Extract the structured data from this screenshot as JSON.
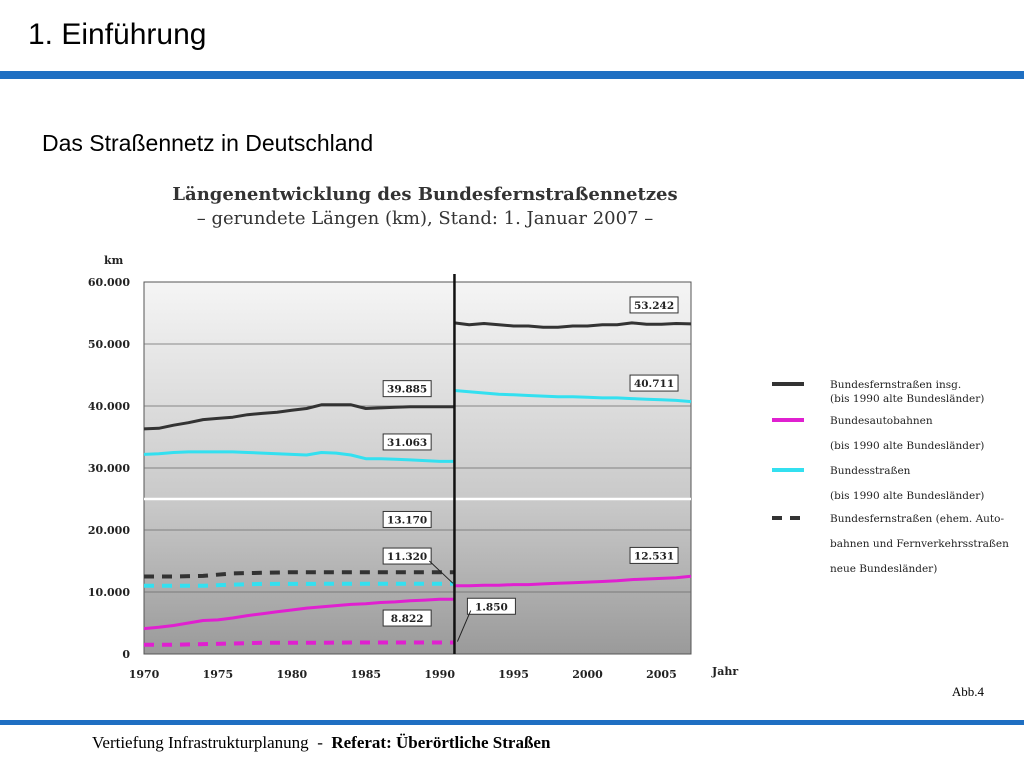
{
  "slide": {
    "title": "1. Einführung",
    "subtitle": "Das Straßennetz in Deutschland",
    "figure_label": "Abb.4",
    "accent_color": "#1f6fc2",
    "footer": {
      "course": "Vertiefung Infrastrukturplanung",
      "separator": "  -  ",
      "topic": "Referat: Überörtliche Straßen"
    }
  },
  "chart_data": {
    "type": "line",
    "title": "Längenentwicklung des Bundesfernstraßennetzes",
    "subtitle": "– gerundete Längen (km), Stand: 1. Januar 2007 –",
    "ylabel": "km",
    "xlabel": "Jahr",
    "ylim": [
      0,
      60000
    ],
    "xlim": [
      1970,
      2007
    ],
    "yticks": [
      "0",
      "10.000",
      "20.000",
      "30.000",
      "40.000",
      "50.000",
      "60.000"
    ],
    "ytick_values": [
      0,
      10000,
      20000,
      30000,
      40000,
      50000,
      60000
    ],
    "xticks": [
      "1970",
      "1975",
      "1980",
      "1985",
      "1990",
      "1995",
      "2000",
      "2005"
    ],
    "xtick_values": [
      1970,
      1975,
      1980,
      1985,
      1990,
      1995,
      2000,
      2005
    ],
    "break_year": 1991,
    "grid": true,
    "legend_position": "right",
    "series": [
      {
        "name": "Bundesfernstraßen insg. (bis 1990 alte Bundesländer)",
        "color": "#333333",
        "dash": false,
        "x": [
          1970,
          1971,
          1972,
          1973,
          1974,
          1975,
          1976,
          1977,
          1978,
          1979,
          1980,
          1981,
          1982,
          1983,
          1984,
          1985,
          1986,
          1987,
          1988,
          1989,
          1990,
          1991
        ],
        "y": [
          36300,
          36400,
          36900,
          37300,
          37800,
          38000,
          38200,
          38600,
          38800,
          39000,
          39300,
          39600,
          40200,
          40200,
          40200,
          39600,
          39700,
          39800,
          39885,
          39885,
          39885,
          39885
        ]
      },
      {
        "name": "Bundesfernstraßen insg. (ab 1991)",
        "color": "#333333",
        "dash": false,
        "x": [
          1991,
          1992,
          1993,
          1994,
          1995,
          1996,
          1997,
          1998,
          1999,
          2000,
          2001,
          2002,
          2003,
          2004,
          2005,
          2006,
          2007
        ],
        "y": [
          53400,
          53100,
          53300,
          53100,
          52900,
          52900,
          52700,
          52700,
          52900,
          52900,
          53100,
          53100,
          53400,
          53200,
          53200,
          53300,
          53242
        ]
      },
      {
        "name": "Bundesautobahnen (bis 1990 alte Bundesländer)",
        "color": "#e020d0",
        "dash": false,
        "x": [
          1970,
          1971,
          1972,
          1973,
          1974,
          1975,
          1976,
          1977,
          1978,
          1979,
          1980,
          1981,
          1982,
          1983,
          1984,
          1985,
          1986,
          1987,
          1988,
          1989,
          1990,
          1991
        ],
        "y": [
          4100,
          4300,
          4600,
          5000,
          5400,
          5500,
          5800,
          6200,
          6500,
          6800,
          7100,
          7400,
          7600,
          7800,
          8000,
          8100,
          8300,
          8400,
          8600,
          8700,
          8822,
          8822
        ]
      },
      {
        "name": "Bundesautobahnen (ab 1991)",
        "color": "#e020d0",
        "dash": false,
        "x": [
          1991,
          1992,
          1993,
          1994,
          1995,
          1996,
          1997,
          1998,
          1999,
          2000,
          2001,
          2002,
          2003,
          2004,
          2005,
          2006,
          2007
        ],
        "y": [
          11000,
          11000,
          11100,
          11100,
          11200,
          11200,
          11300,
          11400,
          11500,
          11600,
          11700,
          11800,
          12000,
          12100,
          12200,
          12300,
          12531
        ]
      },
      {
        "name": "Bundesstraßen (bis 1990 alte Bundesländer)",
        "color": "#33e0f0",
        "dash": false,
        "x": [
          1970,
          1971,
          1972,
          1973,
          1974,
          1975,
          1976,
          1977,
          1978,
          1979,
          1980,
          1981,
          1982,
          1983,
          1984,
          1985,
          1986,
          1987,
          1988,
          1989,
          1990,
          1991
        ],
        "y": [
          32200,
          32300,
          32500,
          32600,
          32600,
          32600,
          32600,
          32500,
          32400,
          32300,
          32200,
          32100,
          32500,
          32400,
          32100,
          31500,
          31500,
          31400,
          31300,
          31200,
          31063,
          31063
        ]
      },
      {
        "name": "Bundesstraßen (ab 1991)",
        "color": "#33e0f0",
        "dash": false,
        "x": [
          1991,
          1992,
          1993,
          1994,
          1995,
          1996,
          1997,
          1998,
          1999,
          2000,
          2001,
          2002,
          2003,
          2004,
          2005,
          2006,
          2007
        ],
        "y": [
          42500,
          42300,
          42100,
          41900,
          41800,
          41700,
          41600,
          41500,
          41500,
          41400,
          41300,
          41300,
          41200,
          41100,
          41000,
          40900,
          40711
        ]
      },
      {
        "name": "Bundesfernstraßen (ehem. Autobahnen und Fernverkehrsstraßen neue Bundesländer)",
        "color": "#333333",
        "dash": true,
        "x": [
          1970,
          1972,
          1974,
          1976,
          1978,
          1980,
          1982,
          1984,
          1986,
          1988,
          1991
        ],
        "y": [
          12500,
          12500,
          12600,
          13000,
          13100,
          13200,
          13200,
          13170,
          13170,
          13170,
          13170
        ]
      },
      {
        "name": "Bundesstraßen (neue Bundesländer)",
        "color": "#33e0f0",
        "dash": true,
        "x": [
          1970,
          1972,
          1974,
          1976,
          1978,
          1980,
          1982,
          1984,
          1986,
          1988,
          1991
        ],
        "y": [
          11000,
          11000,
          11000,
          11200,
          11300,
          11300,
          11320,
          11320,
          11320,
          11320,
          11320
        ]
      },
      {
        "name": "Bundesautobahnen (neue Bundesländer)",
        "color": "#e020d0",
        "dash": true,
        "x": [
          1970,
          1972,
          1974,
          1976,
          1978,
          1980,
          1982,
          1984,
          1986,
          1988,
          1991
        ],
        "y": [
          1500,
          1500,
          1600,
          1700,
          1800,
          1800,
          1800,
          1850,
          1850,
          1850,
          1850
        ]
      }
    ],
    "annotations": [
      {
        "text": "53.242",
        "x": 2004.5,
        "y": 56300
      },
      {
        "text": "39.885",
        "x": 1987.8,
        "y": 42800
      },
      {
        "text": "40.711",
        "x": 2004.5,
        "y": 43700
      },
      {
        "text": "31.063",
        "x": 1987.8,
        "y": 34200
      },
      {
        "text": "13.170",
        "x": 1987.8,
        "y": 21700
      },
      {
        "text": "11.320",
        "x": 1987.8,
        "y": 15800
      },
      {
        "text": "12.531",
        "x": 2004.5,
        "y": 15900
      },
      {
        "text": "8.822",
        "x": 1987.8,
        "y": 5800
      },
      {
        "text": "1.850",
        "x": 1993.5,
        "y": 7700
      }
    ],
    "legend": [
      {
        "line1": "Bundesfernstraßen insg.",
        "line2": "(bis 1990 alte Bundesländer)",
        "color": "#333333",
        "dash": false
      },
      {
        "line1": "Bundesautobahnen",
        "line2": "(bis 1990 alte Bundesländer)",
        "color": "#e020d0",
        "dash": false
      },
      {
        "line1": "Bundesstraßen",
        "line2": "(bis 1990 alte Bundesländer)",
        "color": "#33e0f0",
        "dash": false
      },
      {
        "line1": "Bundesfernstraßen (ehem. Auto-",
        "line2": "bahnen und Fernverkehrsstraßen",
        "line3": "neue Bundesländer)",
        "color": "#333333",
        "dash": true
      }
    ]
  }
}
